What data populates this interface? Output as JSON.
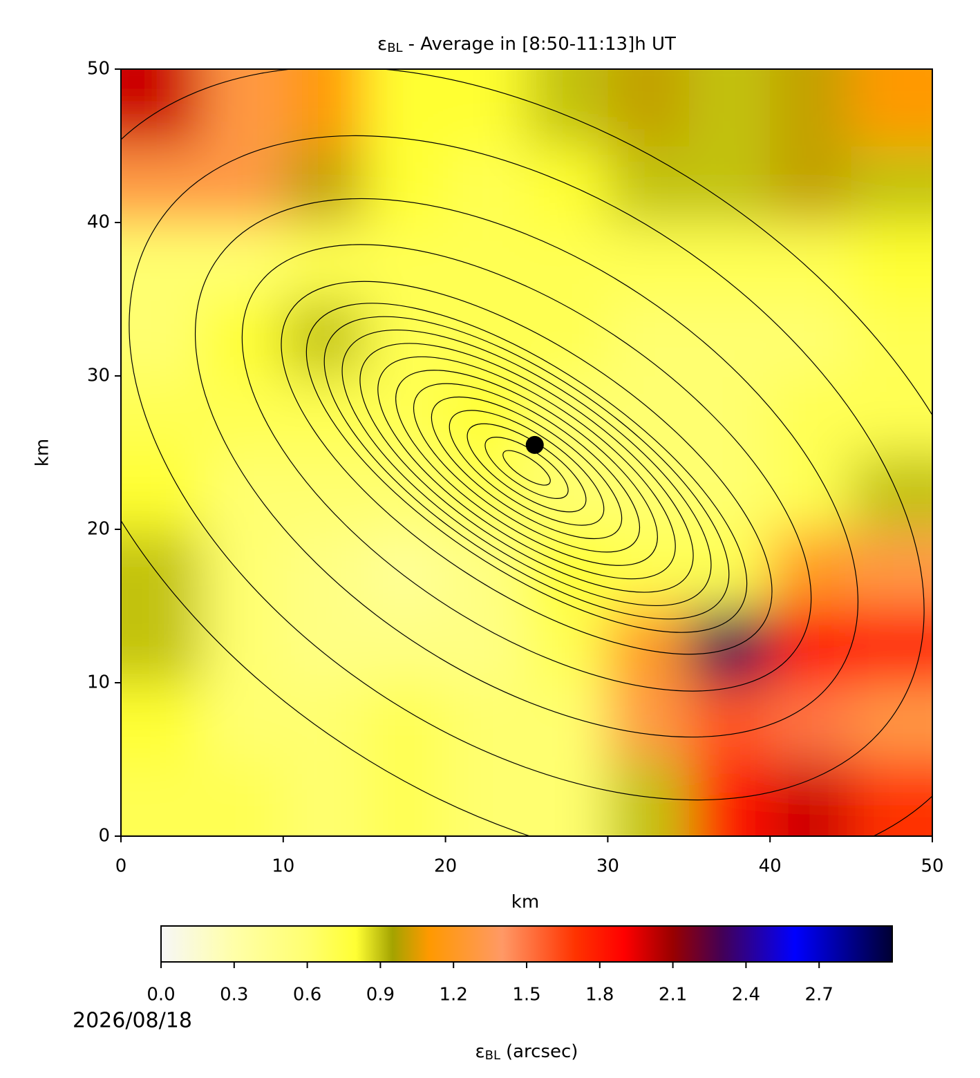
{
  "chart_data": {
    "type": "contourf",
    "title": {
      "symbol": "ε",
      "subscript": "BL",
      "text": "- Average in [8:50-11:13]h UT"
    },
    "x_label": "km",
    "y_label": "km",
    "xlim": [
      0,
      50
    ],
    "ylim": [
      0,
      50
    ],
    "xticks": [
      0,
      10,
      20,
      30,
      40,
      50
    ],
    "yticks": [
      0,
      10,
      20,
      30,
      40,
      50
    ],
    "x": [
      2.5,
      7.5,
      12.5,
      17.5,
      22.5,
      27.5,
      32.5,
      37.5,
      42.5,
      47.5
    ],
    "y": [
      2.5,
      7.5,
      12.5,
      17.5,
      22.5,
      27.5,
      32.5,
      37.5,
      42.5,
      47.5
    ],
    "z": [
      [
        0.7,
        0.7,
        0.6,
        0.7,
        0.6,
        0.6,
        0.9,
        1.8,
        2.0,
        1.7
      ],
      [
        0.8,
        0.6,
        0.6,
        0.7,
        0.6,
        0.6,
        1.3,
        1.6,
        1.5,
        1.3
      ],
      [
        0.9,
        0.6,
        0.5,
        0.5,
        0.5,
        0.7,
        1.2,
        2.3,
        1.9,
        1.8
      ],
      [
        0.9,
        0.6,
        0.5,
        0.4,
        0.5,
        0.8,
        0.7,
        0.7,
        1.2,
        1.3
      ],
      [
        0.8,
        0.6,
        0.6,
        0.6,
        0.7,
        0.6,
        0.6,
        0.6,
        0.7,
        0.9
      ],
      [
        0.7,
        0.7,
        0.7,
        0.7,
        0.8,
        0.6,
        0.6,
        0.6,
        0.7,
        0.7
      ],
      [
        0.6,
        0.8,
        0.9,
        0.7,
        0.7,
        0.7,
        0.6,
        0.6,
        0.6,
        0.7
      ],
      [
        0.6,
        0.6,
        0.7,
        0.7,
        0.7,
        0.7,
        0.7,
        0.7,
        0.7,
        0.8
      ],
      [
        1.3,
        1.3,
        1.0,
        0.8,
        0.7,
        0.8,
        0.9,
        0.9,
        1.0,
        0.9
      ],
      [
        2.0,
        1.3,
        1.1,
        0.8,
        0.8,
        0.9,
        1.0,
        0.9,
        1.0,
        1.1
      ]
    ],
    "points": {
      "x": [
        25.5
      ],
      "y": [
        25.5
      ],
      "color": "#000000"
    },
    "colorbar": {
      "label": {
        "symbol": "ε",
        "subscript": "BL",
        "text": "(arcsec)"
      },
      "clim": [
        0,
        3
      ],
      "ticks": [
        {
          "value": 0,
          "label": "0.0"
        },
        {
          "value": 0.3,
          "label": "0.3"
        },
        {
          "value": 0.6,
          "label": "0.6"
        },
        {
          "value": 0.9,
          "label": "0.9"
        },
        {
          "value": 1.2,
          "label": "1.2"
        },
        {
          "value": 1.5,
          "label": "1.5"
        },
        {
          "value": 1.8,
          "label": "1.8"
        },
        {
          "value": 2.1,
          "label": "2.1"
        },
        {
          "value": 2.4,
          "label": "2.4"
        },
        {
          "value": 2.7,
          "label": "2.7"
        }
      ],
      "colorscale": [
        [
          0,
          "#f7f7f7"
        ],
        [
          0.3,
          "#ffffa8"
        ],
        [
          0.6,
          "#ffff70"
        ],
        [
          0.8,
          "#ffff33"
        ],
        [
          0.95,
          "#a3a300"
        ],
        [
          1.1,
          "#ff9900"
        ],
        [
          1.4,
          "#ff9966"
        ],
        [
          1.7,
          "#ff3300"
        ],
        [
          1.9,
          "#ff0000"
        ],
        [
          2.1,
          "#990000"
        ],
        [
          2.3,
          "#440055"
        ],
        [
          2.6,
          "#0000ff"
        ],
        [
          3.0,
          "#000033"
        ]
      ]
    },
    "date": "2026/08/18"
  }
}
